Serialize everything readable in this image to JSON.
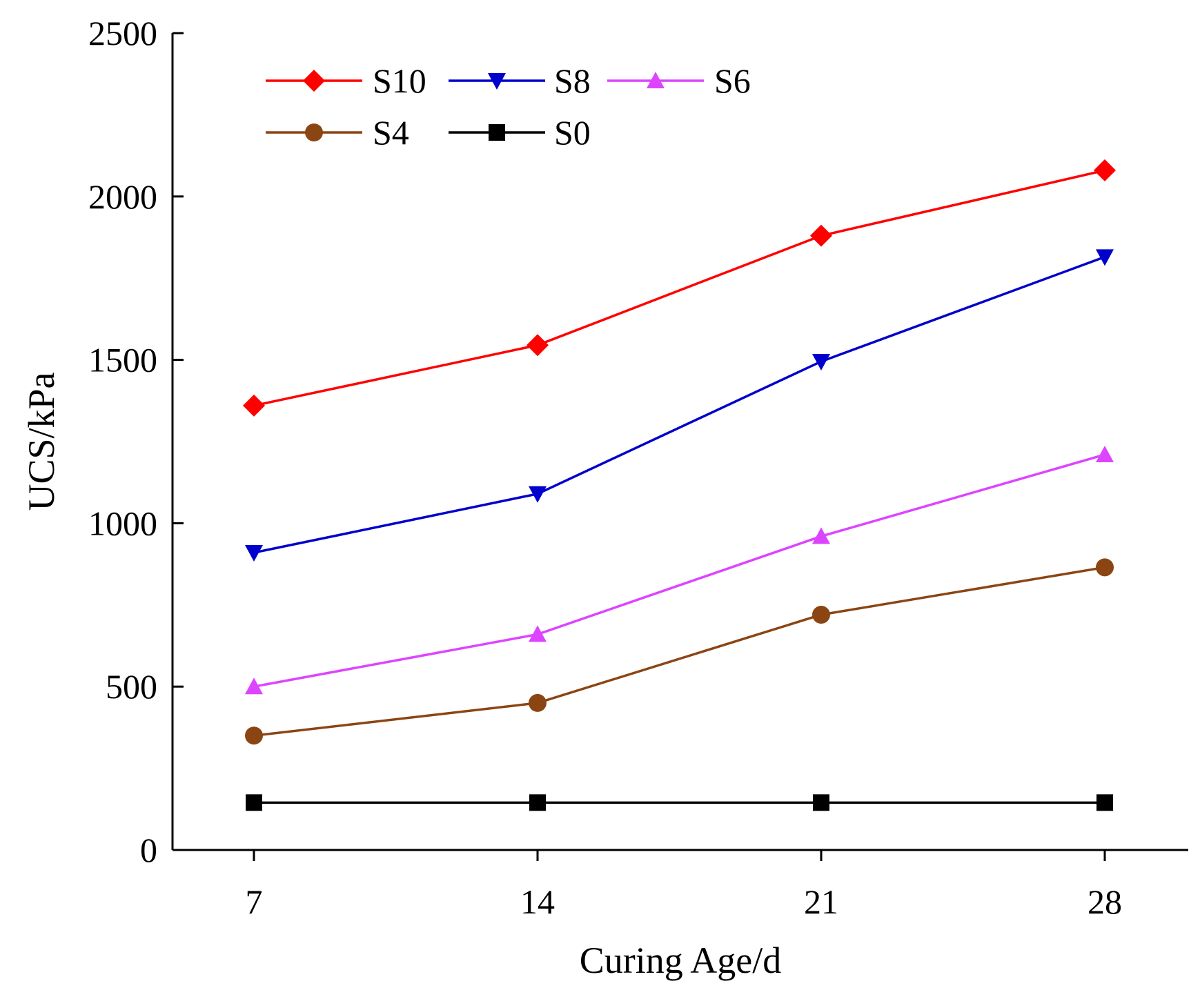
{
  "chart_data": {
    "type": "line",
    "title": "",
    "xlabel": "Curing Age/d",
    "ylabel": "UCS/kPa",
    "x": [
      7,
      14,
      21,
      28
    ],
    "x_tick_labels": [
      "7",
      "14",
      "21",
      "28"
    ],
    "ylim": [
      0,
      2500
    ],
    "y_ticks": [
      0,
      500,
      1000,
      1500,
      2000,
      2500
    ],
    "y_tick_labels": [
      "0",
      "500",
      "1000",
      "1500",
      "2000",
      "2500"
    ],
    "grid": false,
    "legend_position": "top-left",
    "series": [
      {
        "name": "S10",
        "color": "#ff0000",
        "marker": "diamond",
        "values": [
          1360,
          1545,
          1880,
          2080
        ]
      },
      {
        "name": "S8",
        "color": "#0000cc",
        "marker": "triangle-down",
        "values": [
          910,
          1090,
          1495,
          1815
        ]
      },
      {
        "name": "S6",
        "color": "#dd44ff",
        "marker": "triangle-up",
        "values": [
          500,
          660,
          960,
          1210
        ]
      },
      {
        "name": "S4",
        "color": "#8b4513",
        "marker": "circle",
        "values": [
          350,
          450,
          720,
          865
        ]
      },
      {
        "name": "S0",
        "color": "#000000",
        "marker": "square",
        "values": [
          145,
          145,
          145,
          145
        ]
      }
    ]
  }
}
